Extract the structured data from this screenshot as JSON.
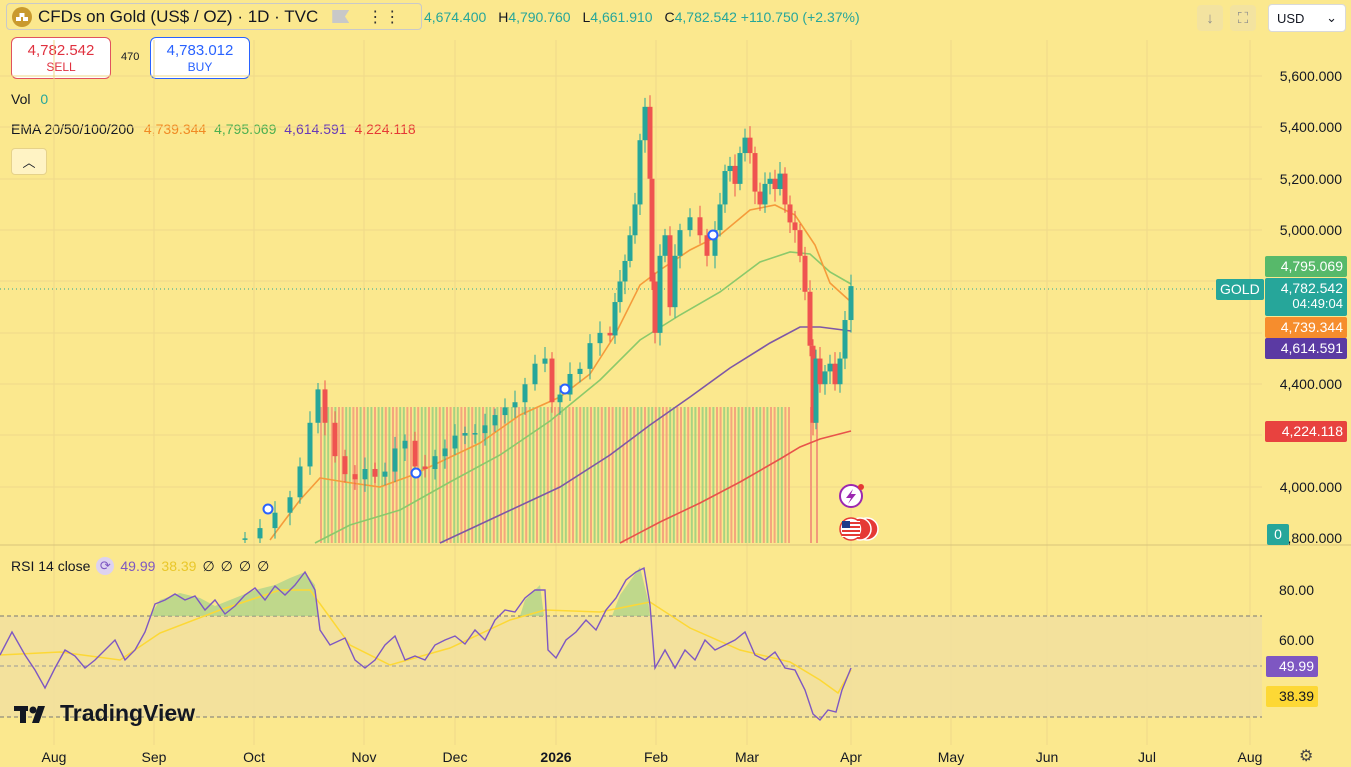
{
  "header": {
    "symbol_title": "CFDs on Gold (US$ / OZ) · 1D · TVC",
    "ohlc": {
      "o_key": "O",
      "o": "4,674.400",
      "h_key": "H",
      "h": "4,790.760",
      "l_key": "L",
      "l": "4,661.910",
      "c_key": "C",
      "c": "4,782.542",
      "change": "+110.750 (+2.37%)"
    },
    "currency": "USD"
  },
  "trade": {
    "sell_price": "4,782.542",
    "sell_label": "SELL",
    "buy_price": "4,783.012",
    "buy_label": "BUY",
    "spread": "470"
  },
  "legend": {
    "vol_label": "Vol",
    "vol_value": "0",
    "ema_label": "EMA 20/50/100/200",
    "ema20": "4,739.344",
    "ema50": "4,795.069",
    "ema100": "4,614.591",
    "ema200": "4,224.118"
  },
  "rsi_legend": {
    "label": "RSI 14 close",
    "value": "49.99",
    "ma": "38.39",
    "extra": [
      "∅",
      "∅",
      "∅",
      "∅"
    ]
  },
  "price_axis": [
    "5,600.000",
    "5,400.000",
    "5,200.000",
    "5,000.000",
    "4,400.000",
    "4,000.000",
    "3,800.000"
  ],
  "price_tags": {
    "symbol": "GOLD",
    "ema50": "4,795.069",
    "last": "4,782.542",
    "countdown": "04:49:04",
    "ema20": "4,739.344",
    "ema100": "4,614.591",
    "ema200": "4,224.118",
    "volume": "0"
  },
  "rsi_axis": [
    "80.00",
    "60.00"
  ],
  "rsi_tags": {
    "value": "49.99",
    "ma": "38.39"
  },
  "time_axis": [
    "Aug",
    "Sep",
    "Oct",
    "Nov",
    "Dec",
    "2026",
    "Feb",
    "Mar",
    "Apr",
    "May",
    "Jun",
    "Jul",
    "Aug"
  ],
  "branding": "TradingView",
  "colors": {
    "background": "#fbe88e",
    "up": "#26a69a",
    "down": "#ef5350",
    "ema20": "#f59b3b",
    "ema50": "#8bc96b",
    "ema100": "#7e57a6",
    "ema200": "#e8534a",
    "rsi": "#7e57c2",
    "rsi_ma": "#fdd835"
  },
  "chart_data": {
    "type": "candlestick",
    "price_range": [
      3800,
      5700
    ],
    "candles_monthly_approx": {
      "x": [
        "Oct",
        "Nov",
        "Dec",
        "2026",
        "Feb",
        "Mar",
        "Apr"
      ],
      "close": [
        4050,
        4000,
        4300,
        4450,
        4900,
        5100,
        4782.542
      ]
    },
    "rsi_range": [
      20,
      95
    ],
    "rsi_levels": [
      70,
      50,
      30
    ]
  }
}
